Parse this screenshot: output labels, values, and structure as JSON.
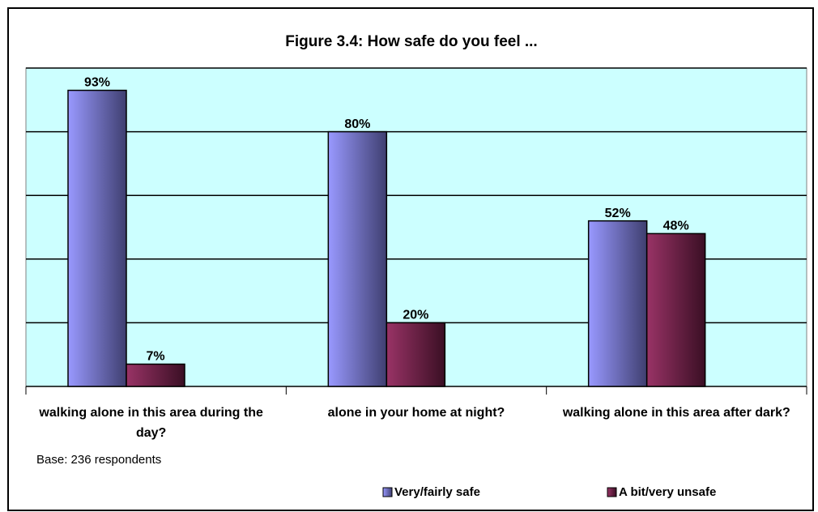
{
  "chart_data": {
    "type": "bar",
    "title": "Figure 3.4: How safe do you feel ...",
    "categories": [
      "walking alone in this area during the day?",
      "alone in your home at night?",
      "walking alone in this area after dark?"
    ],
    "series": [
      {
        "name": "Very/fairly safe",
        "color": "#9999ff",
        "values": [
          93,
          80,
          52
        ],
        "value_labels": [
          "93%",
          "80%",
          "52%"
        ]
      },
      {
        "name": "A bit/very unsafe",
        "color": "#993366",
        "values": [
          7,
          20,
          48
        ],
        "value_labels": [
          "7%",
          "20%",
          "48%"
        ]
      }
    ],
    "ylim": [
      0,
      100
    ],
    "yticks": [
      0,
      20,
      40,
      60,
      80,
      100
    ],
    "grid": true,
    "note": "Base:  236 respondents",
    "legend": "bottom"
  }
}
